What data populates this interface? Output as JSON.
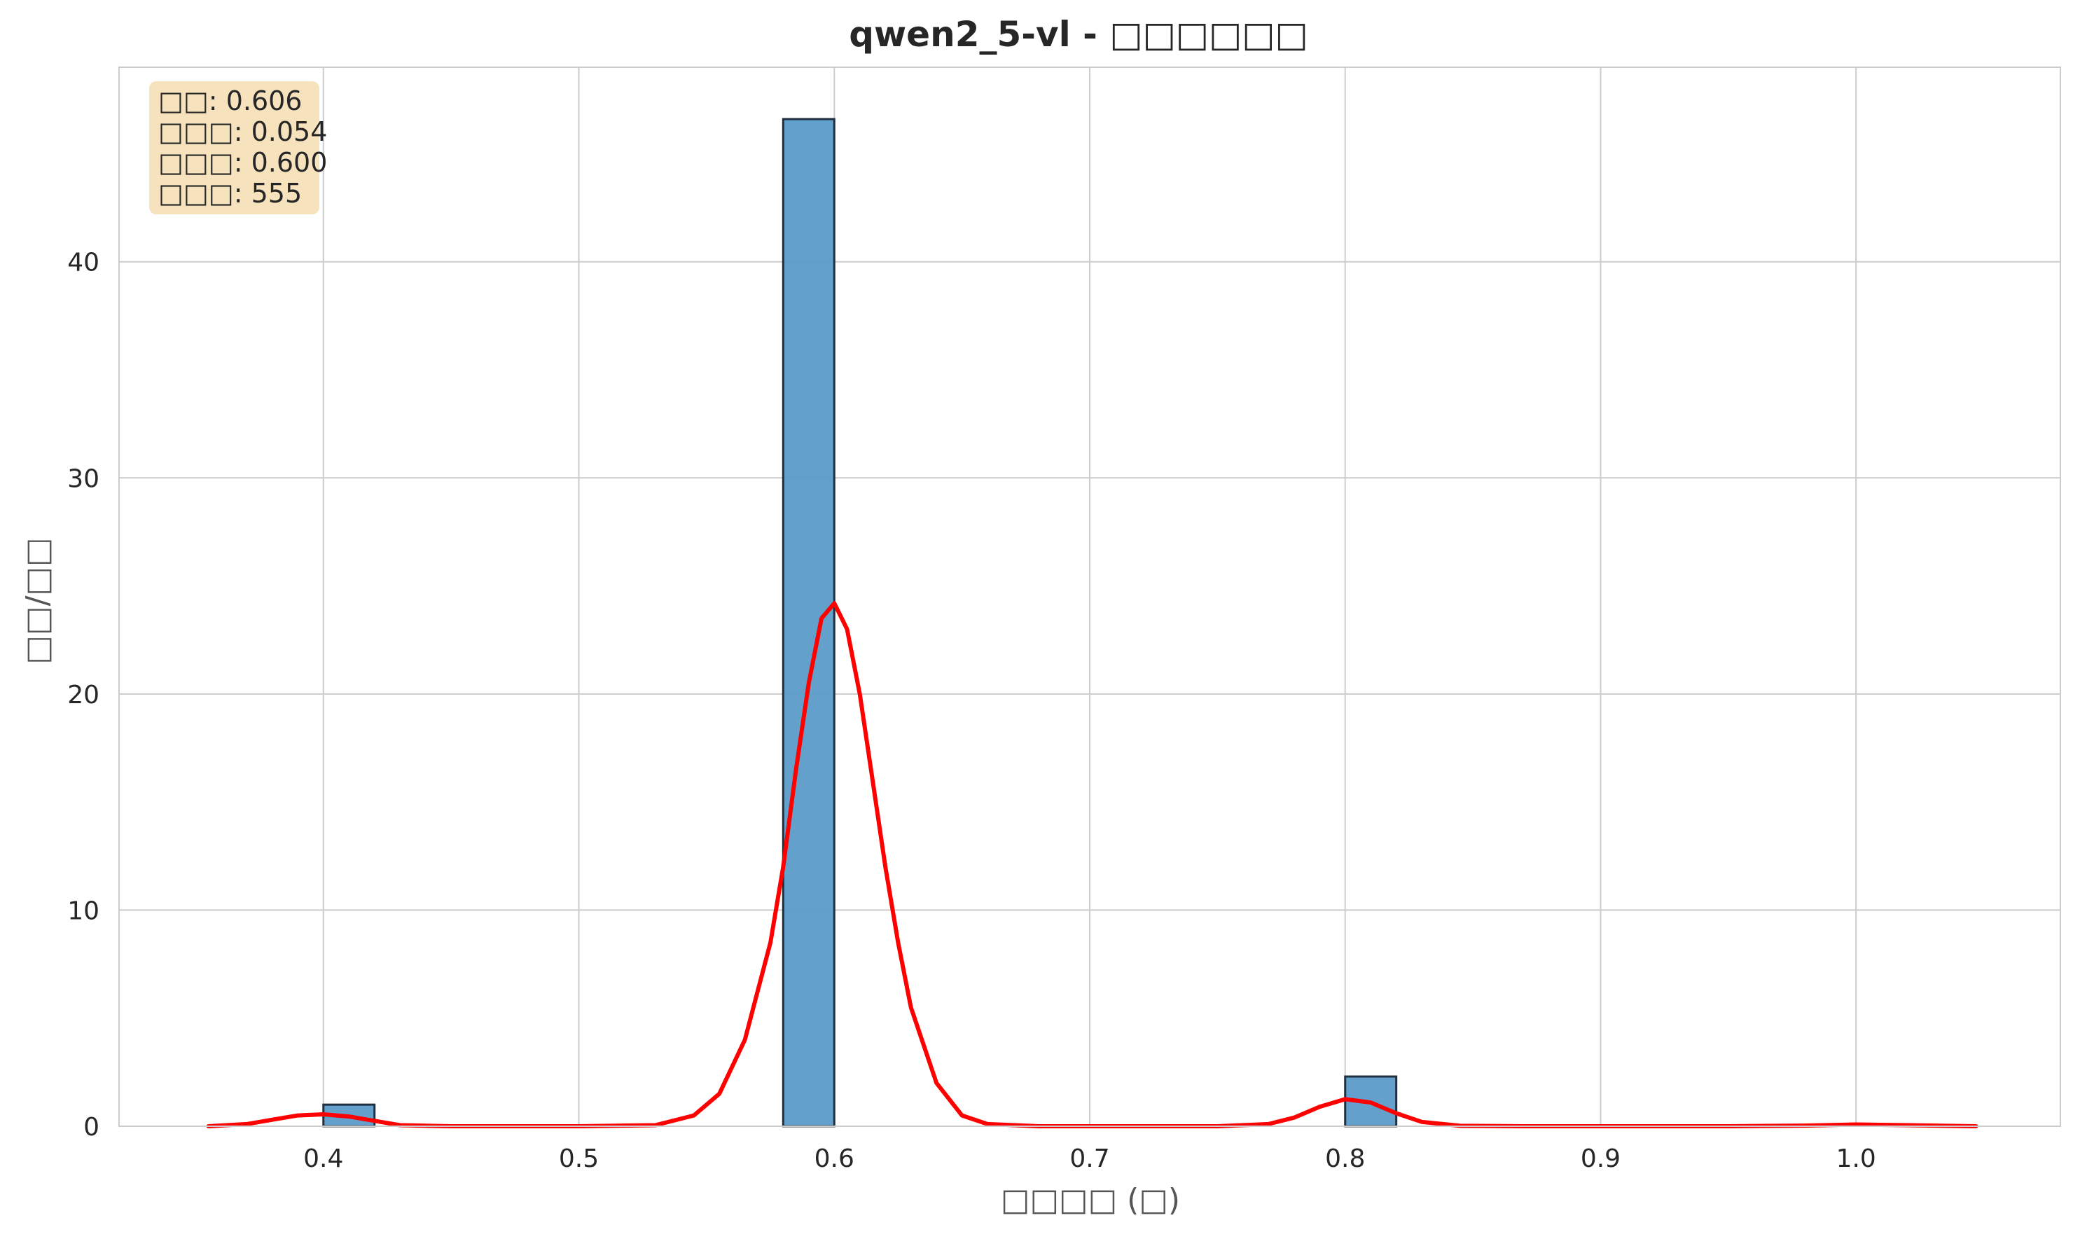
{
  "chart_data": {
    "type": "bar",
    "subtype": "histogram-with-kde",
    "title": "qwen2_5-vl - □□□□□□",
    "xlabel": "□□□□ (□)",
    "ylabel": "□□/□□",
    "xlim": [
      0.32,
      1.08
    ],
    "ylim": [
      0,
      49
    ],
    "x_ticks": [
      "0.4",
      "0.5",
      "0.6",
      "0.7",
      "0.8",
      "0.9",
      "1.0"
    ],
    "x_tick_values": [
      0.4,
      0.5,
      0.6,
      0.7,
      0.8,
      0.9,
      1.0
    ],
    "y_ticks": [
      "0",
      "10",
      "20",
      "30",
      "40"
    ],
    "y_tick_values": [
      0,
      10,
      20,
      30,
      40
    ],
    "grid": true,
    "bars": [
      {
        "x_start": 0.4,
        "x_end": 0.42,
        "value": 1.0
      },
      {
        "x_start": 0.58,
        "x_end": 0.6,
        "value": 46.6
      },
      {
        "x_start": 0.8,
        "x_end": 0.82,
        "value": 2.3
      }
    ],
    "bar_color": "#5b9bc9",
    "bar_edge_color": "#1f2f3f",
    "kde": {
      "color": "#ff0000",
      "x": [
        0.355,
        0.37,
        0.38,
        0.39,
        0.4,
        0.41,
        0.42,
        0.43,
        0.45,
        0.5,
        0.53,
        0.545,
        0.555,
        0.565,
        0.575,
        0.58,
        0.585,
        0.59,
        0.595,
        0.6,
        0.605,
        0.61,
        0.615,
        0.62,
        0.625,
        0.63,
        0.64,
        0.65,
        0.66,
        0.68,
        0.7,
        0.75,
        0.77,
        0.78,
        0.79,
        0.8,
        0.81,
        0.82,
        0.83,
        0.845,
        0.87,
        0.95,
        0.98,
        1.0,
        1.02,
        1.047
      ],
      "y": [
        0.0,
        0.1,
        0.3,
        0.5,
        0.55,
        0.45,
        0.25,
        0.05,
        0.0,
        0.0,
        0.05,
        0.5,
        1.5,
        4.0,
        8.5,
        12.0,
        16.5,
        20.5,
        23.5,
        24.2,
        23.0,
        20.0,
        16.0,
        12.0,
        8.5,
        5.5,
        2.0,
        0.5,
        0.1,
        0.0,
        0.0,
        0.0,
        0.1,
        0.4,
        0.9,
        1.25,
        1.1,
        0.6,
        0.2,
        0.02,
        0.0,
        0.0,
        0.03,
        0.08,
        0.05,
        0.0
      ]
    },
    "stats_box": {
      "lines": [
        "□□: 0.606",
        "□□□: 0.054",
        "□□□: 0.600",
        "□□□: 555"
      ],
      "background": "#f5deb3"
    },
    "grid_color": "#cccccc"
  }
}
